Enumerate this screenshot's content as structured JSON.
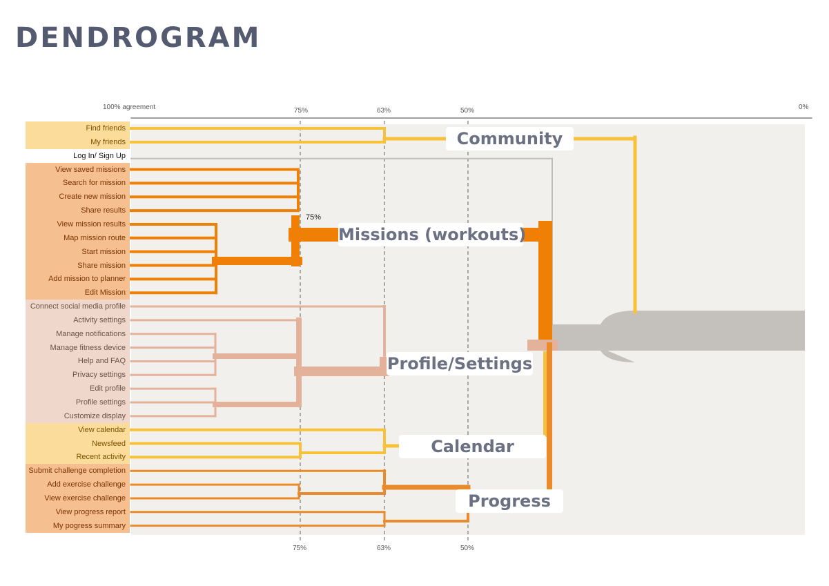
{
  "title": "DENDROGRAM",
  "axis": {
    "left_label": "100% agreement",
    "right_label": "0%",
    "ticks": [
      "75%",
      "63%",
      "50%"
    ]
  },
  "inline_label": "75%",
  "colors": {
    "community": "#f7c23a",
    "community_bg": "#fcdc9b",
    "missions": "#f07f05",
    "missions_bg": "#f6bf90",
    "profile": "#e4b29a",
    "profile_bg": "#f0d7cb",
    "progress": "#eb8a2a",
    "root": "#c4c1bc",
    "panel": "#f1f0ec"
  },
  "leaves": [
    {
      "label": "Find friends",
      "group": "community"
    },
    {
      "label": "My friends",
      "group": "community"
    },
    {
      "label": "Log In/ Sign Up",
      "group": "none"
    },
    {
      "label": "View saved missions",
      "group": "missions"
    },
    {
      "label": "Search for mission",
      "group": "missions"
    },
    {
      "label": "Create new mission",
      "group": "missions"
    },
    {
      "label": "Share results",
      "group": "missions"
    },
    {
      "label": "View mission results",
      "group": "missions"
    },
    {
      "label": "Map mission route",
      "group": "missions"
    },
    {
      "label": "Start mission",
      "group": "missions"
    },
    {
      "label": "Share mission",
      "group": "missions"
    },
    {
      "label": "Add mission to planner",
      "group": "missions"
    },
    {
      "label": "Edit Mission",
      "group": "missions"
    },
    {
      "label": "Connect social media profile",
      "group": "profile"
    },
    {
      "label": "Activity settings",
      "group": "profile"
    },
    {
      "label": "Manage notifications",
      "group": "profile"
    },
    {
      "label": "Manage fitness device",
      "group": "profile"
    },
    {
      "label": "Help and FAQ",
      "group": "profile"
    },
    {
      "label": "Privacy settings",
      "group": "profile"
    },
    {
      "label": "Edit profile",
      "group": "profile"
    },
    {
      "label": "Profile settings",
      "group": "profile"
    },
    {
      "label": "Customize display",
      "group": "profile"
    },
    {
      "label": "View calendar",
      "group": "calendar"
    },
    {
      "label": "Newsfeed",
      "group": "calendar"
    },
    {
      "label": "Recent activity",
      "group": "calendar"
    },
    {
      "label": "Submit challenge completion",
      "group": "progress"
    },
    {
      "label": "Add exercise challenge",
      "group": "progress"
    },
    {
      "label": "View exercise challenge",
      "group": "progress"
    },
    {
      "label": "View progress report",
      "group": "progress"
    },
    {
      "label": "My pogress summary",
      "group": "progress"
    }
  ],
  "clusters": {
    "community": "Community",
    "missions": "Missions (workouts)",
    "profile": "Profile/Settings",
    "calendar": "Calendar",
    "progress": "Progress"
  }
}
